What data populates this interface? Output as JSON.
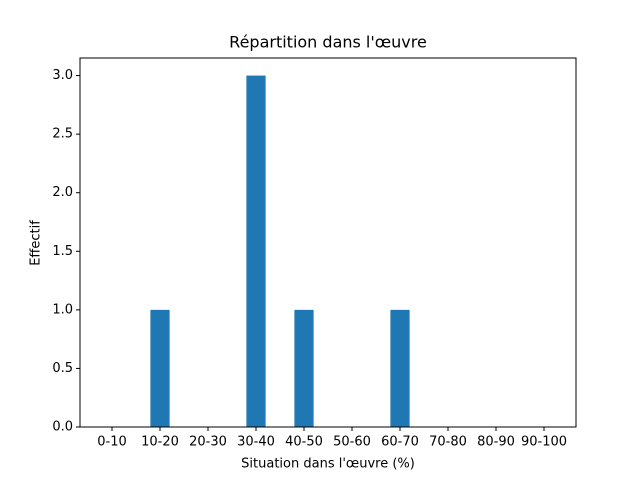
{
  "chart_data": {
    "type": "bar",
    "title": "Répartition dans l'œuvre",
    "xlabel": "Situation dans l'œuvre (%)",
    "ylabel": "Effectif",
    "categories": [
      "0-10",
      "10-20",
      "20-30",
      "30-40",
      "40-50",
      "50-60",
      "60-70",
      "70-80",
      "80-90",
      "90-100"
    ],
    "values": [
      0,
      1,
      0,
      3,
      1,
      0,
      1,
      0,
      0,
      0
    ],
    "color": "#1f77b4",
    "ylim": [
      0,
      3.15
    ],
    "yticks": [
      {
        "value": 0,
        "label": "0.0"
      },
      {
        "value": 0.5,
        "label": "0.5"
      },
      {
        "value": 1,
        "label": "1.0"
      },
      {
        "value": 1.5,
        "label": "1.5"
      },
      {
        "value": 2,
        "label": "2.0"
      },
      {
        "value": 2.5,
        "label": "2.5"
      },
      {
        "value": 3,
        "label": "3.0"
      }
    ],
    "grid": false
  }
}
